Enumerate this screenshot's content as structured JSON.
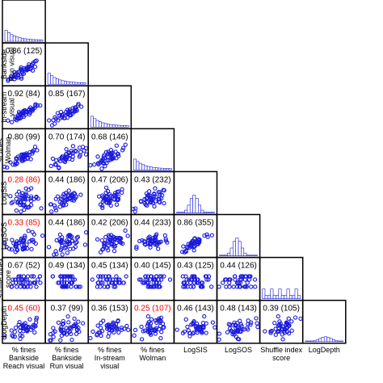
{
  "chart_data": {
    "type": "scatter",
    "variables": [
      [
        "% fines",
        "Bankside",
        "Reach visual"
      ],
      [
        "% fines",
        "Bankside",
        "Run visual"
      ],
      [
        "% fines",
        "In-stream",
        "visual"
      ],
      [
        "% fines",
        "Wolman"
      ],
      [
        "LogSIS"
      ],
      [
        "LogSOS"
      ],
      [
        "Shuffle index",
        "score"
      ],
      [
        "LogDepth"
      ]
    ],
    "correlations": [
      {
        "row": 1,
        "col": 0,
        "text": "0.86 (125)",
        "color": "#000000"
      },
      {
        "row": 2,
        "col": 0,
        "text": "0.92 (84)",
        "color": "#000000"
      },
      {
        "row": 2,
        "col": 1,
        "text": "0.85 (167)",
        "color": "#000000"
      },
      {
        "row": 3,
        "col": 0,
        "text": "0.80 (99)",
        "color": "#000000"
      },
      {
        "row": 3,
        "col": 1,
        "text": "0.70 (174)",
        "color": "#000000"
      },
      {
        "row": 3,
        "col": 2,
        "text": "0.68 (146)",
        "color": "#000000"
      },
      {
        "row": 4,
        "col": 0,
        "text": "0.28 (86)",
        "color": "#ff0000"
      },
      {
        "row": 4,
        "col": 1,
        "text": "0.44 (186)",
        "color": "#000000"
      },
      {
        "row": 4,
        "col": 2,
        "text": "0.47 (206)",
        "color": "#000000"
      },
      {
        "row": 4,
        "col": 3,
        "text": "0.43 (232)",
        "color": "#000000"
      },
      {
        "row": 5,
        "col": 0,
        "text": "0.33 (85)",
        "color": "#ff0000"
      },
      {
        "row": 5,
        "col": 1,
        "text": "0.44 (186)",
        "color": "#000000"
      },
      {
        "row": 5,
        "col": 2,
        "text": "0.42 (206)",
        "color": "#000000"
      },
      {
        "row": 5,
        "col": 3,
        "text": "0.44 (233)",
        "color": "#000000"
      },
      {
        "row": 5,
        "col": 4,
        "text": "0.86 (355)",
        "color": "#000000"
      },
      {
        "row": 6,
        "col": 0,
        "text": "0.67 (52)",
        "color": "#000000"
      },
      {
        "row": 6,
        "col": 1,
        "text": "0.49 (134)",
        "color": "#000000"
      },
      {
        "row": 6,
        "col": 2,
        "text": "0.45 (134)",
        "color": "#000000"
      },
      {
        "row": 6,
        "col": 3,
        "text": "0.40 (145)",
        "color": "#000000"
      },
      {
        "row": 6,
        "col": 4,
        "text": "0.43 (125)",
        "color": "#000000"
      },
      {
        "row": 6,
        "col": 5,
        "text": "0.44 (126)",
        "color": "#000000"
      },
      {
        "row": 7,
        "col": 0,
        "text": "0.45 (60)",
        "color": "#ff0000"
      },
      {
        "row": 7,
        "col": 1,
        "text": "0.37 (99)",
        "color": "#000000"
      },
      {
        "row": 7,
        "col": 2,
        "text": "0.36 (153)",
        "color": "#000000"
      },
      {
        "row": 7,
        "col": 3,
        "text": "0.25 (107)",
        "color": "#ff0000"
      },
      {
        "row": 7,
        "col": 4,
        "text": "0.46 (143)",
        "color": "#000000"
      },
      {
        "row": 7,
        "col": 5,
        "text": "0.48 (143)",
        "color": "#000000"
      },
      {
        "row": 7,
        "col": 6,
        "text": "0.39 (105)",
        "color": "#000000"
      }
    ],
    "point_color": "#1a1adc",
    "histogram_color": "#1a1adc",
    "significant_color": "#ff0000"
  }
}
